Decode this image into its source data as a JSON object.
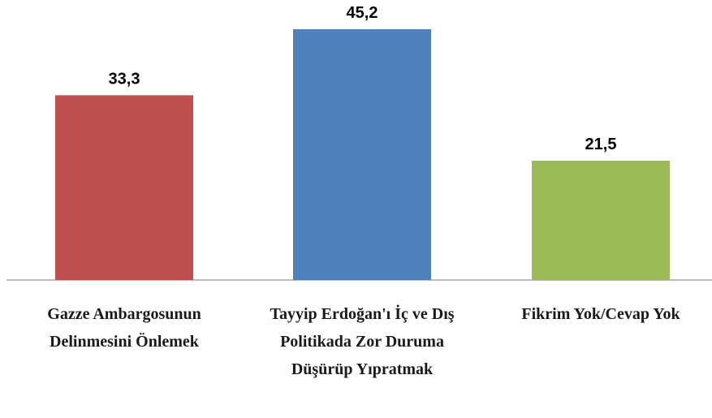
{
  "chart_data": {
    "type": "bar",
    "categories": [
      "Gazze Ambargosunun Delinmesini Önlemek",
      "Tayyip Erdoğan'ı İç ve Dış Politikada Zor Duruma Düşürüp Yıpratmak",
      "Fikrim Yok/Cevap Yok"
    ],
    "values": [
      33.3,
      45.2,
      21.5
    ],
    "value_labels": [
      "33,3",
      "45,2",
      "21,5"
    ],
    "colors": [
      "#c0504d",
      "#4f81bd",
      "#9bbb59"
    ]
  }
}
